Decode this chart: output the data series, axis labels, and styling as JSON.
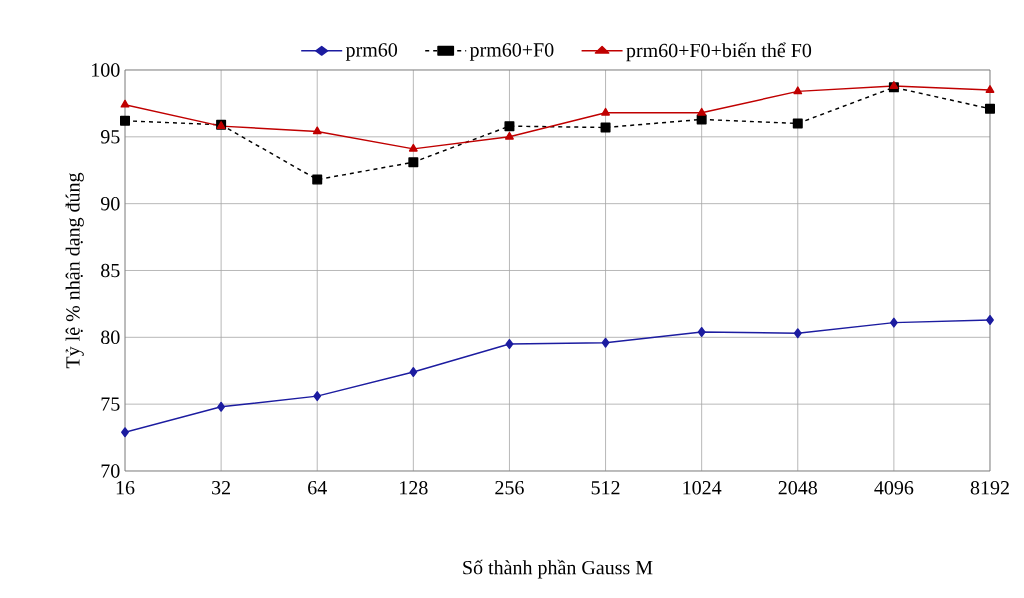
{
  "chart_data": {
    "type": "line",
    "xlabel": "Số thành phần Gauss M",
    "ylabel": "Tỷ lệ % nhận dạng đúng",
    "categories": [
      "16",
      "32",
      "64",
      "128",
      "256",
      "512",
      "1024",
      "2048",
      "4096",
      "8192"
    ],
    "series": [
      {
        "name": "prm60",
        "color": "#1c1ca0",
        "marker": "diamond",
        "line_style": "solid",
        "values": [
          72.9,
          74.8,
          75.6,
          77.4,
          79.5,
          79.6,
          80.4,
          80.3,
          81.1,
          81.3
        ]
      },
      {
        "name": "prm60+F0",
        "color": "#000000",
        "marker": "square",
        "line_style": "dashed",
        "values": [
          96.2,
          95.9,
          91.8,
          93.1,
          95.8,
          95.7,
          96.3,
          96.0,
          98.7,
          97.1
        ]
      },
      {
        "name": "prm60+F0+biến thể F0",
        "color": "#c00000",
        "marker": "triangle",
        "line_style": "solid",
        "values": [
          97.4,
          95.8,
          95.4,
          94.1,
          95.0,
          96.8,
          96.8,
          98.4,
          98.8,
          98.5
        ]
      }
    ],
    "ylim": [
      70,
      100
    ],
    "yticks": [
      70,
      75,
      80,
      85,
      90,
      95,
      100
    ],
    "grid": true,
    "legend": "top"
  }
}
